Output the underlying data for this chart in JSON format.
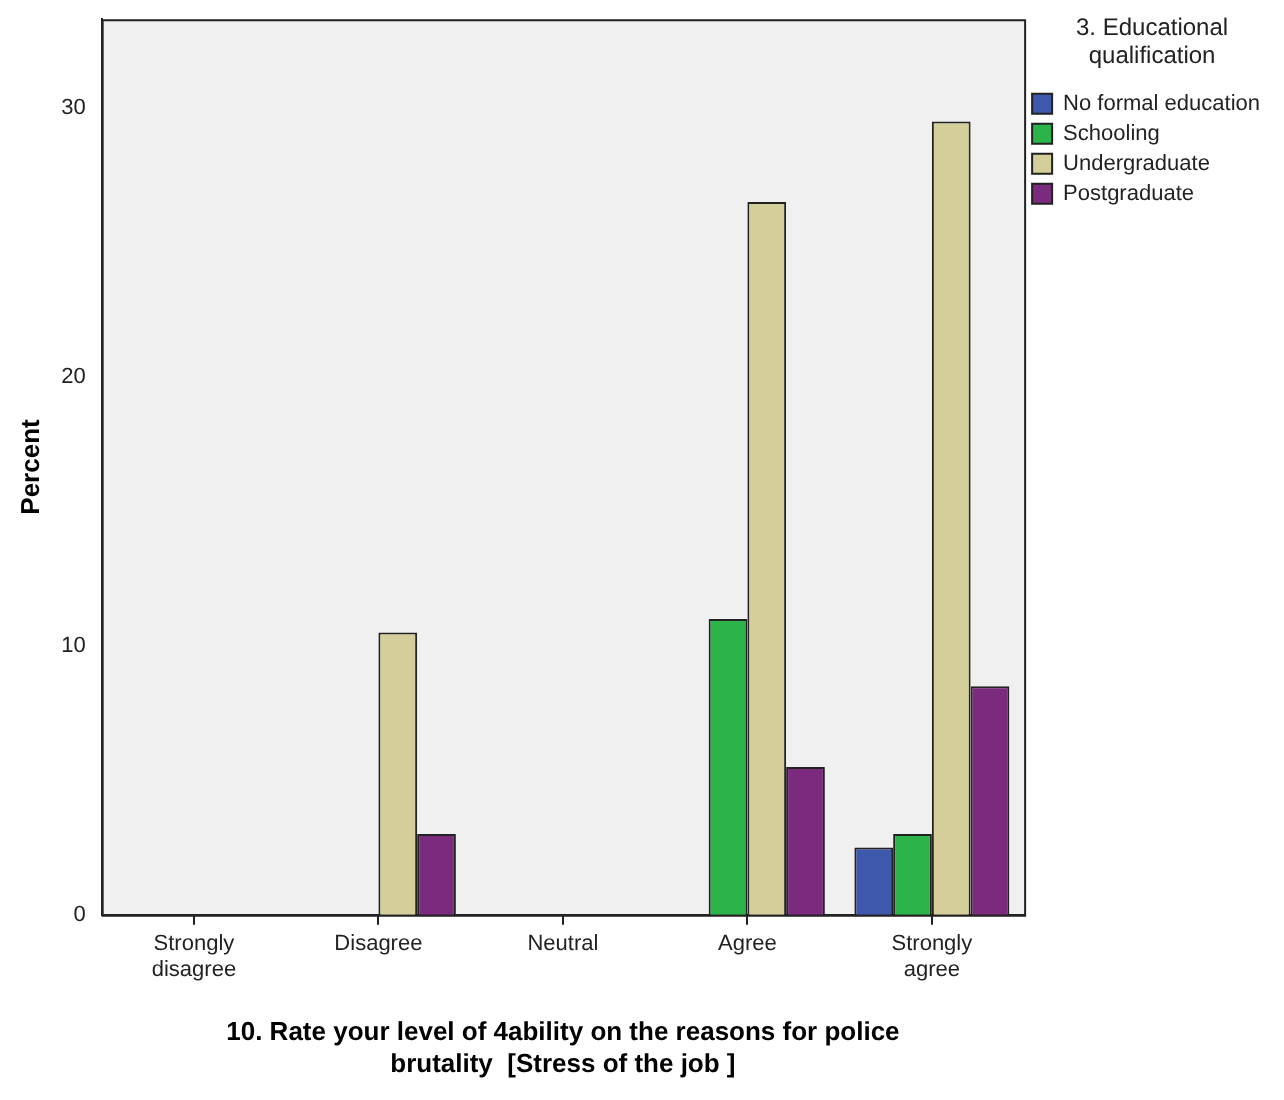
{
  "chart_data": {
    "type": "bar",
    "xlabel": "10. Rate your level of 4ability on the reasons for police brutality  [Stress of the job ]",
    "ylabel": "Percent",
    "legend_title": "3. Educational qualification",
    "categories": [
      "Strongly disagree",
      "Disagree",
      "Neutral",
      "Agree",
      "Strongly agree"
    ],
    "series": [
      {
        "name": "No formal education",
        "color": "#3e58ac",
        "values": [
          0,
          0,
          0,
          0,
          2.5
        ]
      },
      {
        "name": "Schooling",
        "color": "#2cb34a",
        "values": [
          0,
          0,
          0,
          11,
          3
        ]
      },
      {
        "name": "Undergraduate",
        "color": "#d4cf9a",
        "values": [
          0,
          10.5,
          0,
          26.5,
          29.5
        ]
      },
      {
        "name": "Postgraduate",
        "color": "#7b2a7d",
        "values": [
          0,
          3,
          0,
          5.5,
          8.5
        ]
      }
    ],
    "ylim": [
      0,
      33.3
    ],
    "yticks": [
      0,
      10,
      20,
      30
    ],
    "grid": false,
    "legend": "right"
  }
}
